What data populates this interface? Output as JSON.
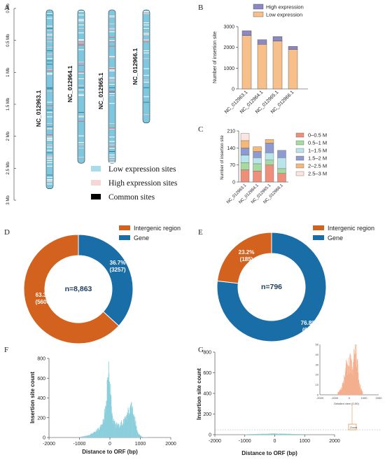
{
  "panel_labels": {
    "A": "A",
    "B": "B",
    "C": "C",
    "D": "D",
    "E": "E",
    "F": "F",
    "G": "G"
  },
  "colors": {
    "low": "#f7c08a",
    "high": "#8b88c4",
    "orange": "#d2621e",
    "blue": "#1a6ea8",
    "hist": "#8ccfdc",
    "inset": "#f4b08e",
    "chr_low": "#7ec7de",
    "chr_high": "#f2c9c6",
    "chr_common": "#000000",
    "c_0_05": "#ee8f7c",
    "c_05_1": "#a7d9a0",
    "c_1_15": "#b8e4ea",
    "c_15_2": "#8e9bd0",
    "c_2_25": "#f5b877",
    "c_25_3": "#fbe5de"
  },
  "chart_data": [
    {
      "panel": "A",
      "type": "other",
      "yticks": [
        "0 Mb",
        "0.5 Mb",
        "1 Mb",
        "1.5 Mb",
        "2 Mb",
        "2.5 Mb",
        "3 Mb"
      ],
      "chromosomes": [
        {
          "name": "NC_012963.1",
          "length_mb": 2.8
        },
        {
          "name": "NC_012964.1",
          "length_mb": 2.4
        },
        {
          "name": "NC_012965.1",
          "length_mb": 2.4
        },
        {
          "name": "NC_012966.1",
          "length_mb": 1.77
        }
      ],
      "legend": [
        "Low expression sites",
        "High expression sites",
        "Common sites"
      ]
    },
    {
      "panel": "B",
      "type": "bar",
      "categories": [
        "NC_012963.1",
        "NC_012964.1",
        "NC_012965.1",
        "NC_012966.1"
      ],
      "series": [
        {
          "name": "Low expression",
          "values": [
            2570,
            2150,
            2300,
            1900
          ]
        },
        {
          "name": "High expression",
          "values": [
            230,
            220,
            220,
            150
          ]
        }
      ],
      "ylabel": "Number of insertion site",
      "ylim": [
        0,
        3000
      ],
      "yticks": [
        0,
        1000,
        2000,
        3000
      ],
      "legend_labels": [
        "High expression",
        "Low expression"
      ]
    },
    {
      "panel": "C",
      "type": "bar",
      "categories": [
        "NC_012963.1",
        "NC_012964.1",
        "NC_012965.1",
        "NC_012966.1"
      ],
      "series": [
        {
          "name": "0–0.5 M",
          "values": [
            50,
            45,
            70,
            35
          ]
        },
        {
          "name": "0.5–1 M",
          "values": [
            30,
            30,
            20,
            20
          ]
        },
        {
          "name": "1–1.5 M",
          "values": [
            30,
            25,
            30,
            45
          ]
        },
        {
          "name": "1.5–2 M",
          "values": [
            30,
            25,
            40,
            30
          ]
        },
        {
          "name": "2–2.5 M",
          "values": [
            30,
            20,
            15,
            0
          ]
        },
        {
          "name": "2.5–3 M",
          "values": [
            30,
            0,
            0,
            0
          ]
        }
      ],
      "ylabel": "Number of insertion site",
      "ylim": [
        0,
        210
      ],
      "yticks": [
        0,
        70,
        140,
        210
      ]
    },
    {
      "panel": "D",
      "type": "pie",
      "labels": [
        "Intergenic region",
        "Gene"
      ],
      "values": [
        5606,
        3257
      ],
      "percents": [
        "63.3%",
        "36.7%"
      ],
      "counts": [
        "(5606)",
        "(3257)"
      ],
      "center": "n=8,863"
    },
    {
      "panel": "E",
      "type": "pie",
      "labels": [
        "Intergenic region",
        "Gene"
      ],
      "values": [
        185,
        611
      ],
      "percents": [
        "23.2%",
        "76.8%"
      ],
      "counts": [
        "(185)",
        "(611)"
      ],
      "center": "n=796"
    },
    {
      "panel": "F",
      "type": "bar",
      "xlabel": "Distance to ORF (bp)",
      "ylabel": "Insertion site count",
      "xlim": [
        -2000,
        2000
      ],
      "ylim": [
        0,
        800
      ],
      "xticks": [
        "-2000",
        "-1000",
        "0",
        "1000",
        "2000"
      ],
      "yticks": [
        "0",
        "200",
        "400",
        "600",
        "800"
      ],
      "x": [
        -1000,
        -900,
        -800,
        -700,
        -600,
        -500,
        -400,
        -300,
        -200,
        -150,
        -100,
        -50,
        -20,
        0,
        20,
        50,
        100,
        150,
        200,
        300,
        400,
        500,
        600,
        700,
        800,
        850,
        900,
        950,
        1000,
        1050,
        1100,
        1200
      ],
      "values": [
        5,
        10,
        15,
        25,
        40,
        60,
        80,
        110,
        200,
        320,
        520,
        700,
        650,
        500,
        380,
        260,
        160,
        140,
        130,
        125,
        150,
        190,
        260,
        300,
        200,
        120,
        60,
        30,
        15,
        8,
        4,
        2
      ]
    },
    {
      "panel": "G",
      "type": "bar",
      "xlabel": "Distance to ORF (bp)",
      "ylabel": "Insertion site count",
      "xlim": [
        -2000,
        2000
      ],
      "ylim": [
        0,
        800
      ],
      "xticks": [
        "-2000",
        "-1000",
        "0",
        "1000",
        "2000"
      ],
      "yticks": [
        "0",
        "200",
        "400",
        "600",
        "800"
      ],
      "inset": {
        "xlabel": "Detailed view (0-50)",
        "ylim": [
          0,
          50
        ],
        "yticks": [
          "0",
          "10",
          "20",
          "30",
          "40",
          "50"
        ],
        "xticks": [
          "-2000",
          "-1000",
          "0",
          "1000",
          "2000"
        ],
        "zoom_label": "Zoom",
        "x": [
          -800,
          -700,
          -600,
          -500,
          -400,
          -300,
          -200,
          -100,
          0,
          100,
          200,
          300,
          400,
          500,
          600,
          700,
          800,
          900
        ],
        "values": [
          2,
          3,
          5,
          8,
          12,
          20,
          28,
          25,
          35,
          30,
          25,
          40,
          45,
          35,
          20,
          10,
          5,
          2
        ]
      },
      "x": [
        -1000,
        -700,
        -400,
        -100,
        0,
        100,
        400,
        700,
        1000
      ],
      "values": [
        4,
        6,
        8,
        10,
        12,
        10,
        8,
        6,
        4
      ]
    }
  ]
}
